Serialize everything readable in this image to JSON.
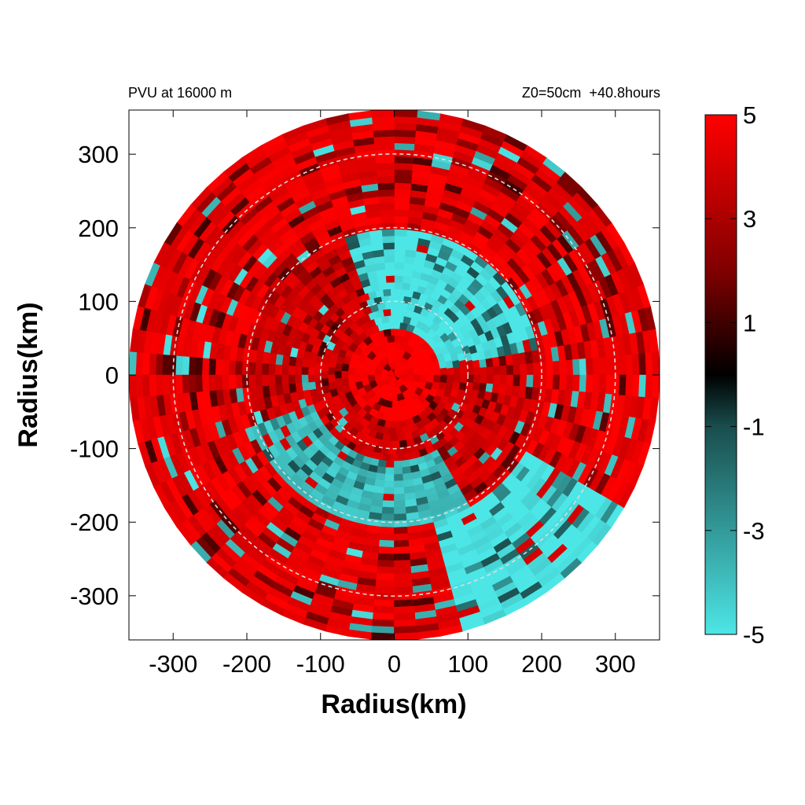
{
  "header": {
    "left": "PVU at 16000 m",
    "right": "Z0=50cm  +40.8hours"
  },
  "chart_data": {
    "type": "heatmap",
    "projection": "polar",
    "title": "PVU at 16000 m",
    "subtitle": "Z0=50cm  +40.8hours",
    "xlabel": "Radius(km)",
    "ylabel": "Radius(km)",
    "xlim": [
      -360,
      360
    ],
    "ylim": [
      -360,
      360
    ],
    "xticks": [
      -300,
      -200,
      -100,
      0,
      100,
      200,
      300
    ],
    "yticks": [
      300,
      200,
      100,
      0,
      -100,
      -200,
      -300
    ],
    "data_radius_max": 360,
    "reference_circles": [
      100,
      200,
      300
    ],
    "colorbar": {
      "min": -5,
      "max": 5,
      "ticks": [
        5,
        3,
        1,
        -1,
        -3,
        -5
      ],
      "stops": [
        {
          "value": -5,
          "color": "#4de6e6"
        },
        {
          "value": -1,
          "color": "#1a4d4d"
        },
        {
          "value": 0,
          "color": "#000000"
        },
        {
          "value": 2,
          "color": "#800000"
        },
        {
          "value": 5,
          "color": "#ff0000"
        }
      ]
    },
    "regions": [
      {
        "description": "core",
        "r": [
          0,
          60
        ],
        "value": 5
      },
      {
        "description": "inner negative ring, northeast-east",
        "r": [
          40,
          200
        ],
        "theta_deg": [
          10,
          110
        ],
        "value": -5
      },
      {
        "description": "inner negative ring, southwest-south",
        "r": [
          120,
          210
        ],
        "theta_deg": [
          200,
          300
        ],
        "value": -4
      },
      {
        "description": "outer negative band, southeast",
        "r": [
          210,
          360
        ],
        "theta_deg": [
          285,
          330
        ],
        "value": -5
      },
      {
        "description": "outer ring",
        "r": [
          200,
          360
        ],
        "value": 4.5
      }
    ]
  },
  "colors": {
    "background": "#ffffff",
    "axis": "#000000",
    "circle": "#dddddd"
  }
}
